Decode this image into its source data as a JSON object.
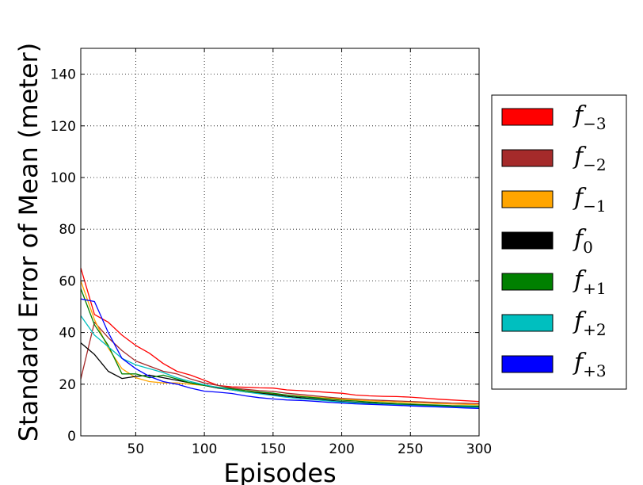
{
  "chart_data": {
    "type": "line",
    "xlabel": "Episodes",
    "ylabel": "Standard Error of Mean (meter)",
    "xlim": [
      10,
      300
    ],
    "ylim": [
      0,
      150
    ],
    "xticks": [
      50,
      100,
      150,
      200,
      250,
      300
    ],
    "yticks": [
      0,
      20,
      40,
      60,
      80,
      100,
      120,
      140
    ],
    "grid": true,
    "legend_position": "right-outside",
    "series": [
      {
        "name": "f_{-3}",
        "legend_base": "f",
        "legend_sub": "−3",
        "color": "#ff0000",
        "x": [
          10,
          20,
          30,
          40,
          50,
          60,
          70,
          80,
          90,
          100,
          110,
          120,
          130,
          140,
          150,
          160,
          170,
          180,
          190,
          200,
          210,
          220,
          230,
          240,
          250,
          260,
          270,
          280,
          290,
          300
        ],
        "y": [
          65,
          47,
          44,
          39,
          35,
          32,
          28,
          25,
          23.5,
          21.5,
          19.5,
          19,
          18.8,
          18.6,
          18.5,
          17.8,
          17.5,
          17.2,
          16.8,
          16.5,
          15.8,
          15.5,
          15.3,
          15.2,
          15,
          14.6,
          14.2,
          13.9,
          13.6,
          13.3
        ]
      },
      {
        "name": "f_{-2}",
        "legend_base": "f",
        "legend_sub": "−2",
        "color": "#a52a2a",
        "x": [
          10,
          20,
          30,
          40,
          50,
          60,
          70,
          80,
          90,
          100,
          110,
          120,
          130,
          140,
          150,
          160,
          170,
          180,
          190,
          200,
          210,
          220,
          230,
          240,
          250,
          260,
          270,
          280,
          290,
          300
        ],
        "y": [
          22,
          44,
          38,
          33,
          29,
          27,
          25,
          24,
          22,
          20.5,
          19.5,
          18.5,
          18,
          17.5,
          17.2,
          16.5,
          16,
          15.5,
          15,
          14.5,
          14.2,
          13.9,
          13.7,
          13.5,
          13.3,
          13.1,
          12.9,
          12.7,
          12.6,
          12.5
        ]
      },
      {
        "name": "f_{-1}",
        "legend_base": "f",
        "legend_sub": "−1",
        "color": "#ffa500",
        "x": [
          10,
          20,
          30,
          40,
          50,
          60,
          70,
          80,
          90,
          100,
          110,
          120,
          130,
          140,
          150,
          160,
          170,
          180,
          190,
          200,
          210,
          220,
          230,
          240,
          250,
          260,
          270,
          280,
          290,
          300
        ],
        "y": [
          60,
          45,
          34,
          26,
          22.5,
          21,
          20.5,
          20.5,
          20,
          19.5,
          18.5,
          17.8,
          17.2,
          16.8,
          16.3,
          15.8,
          15.4,
          15,
          14.6,
          14.2,
          13.9,
          13.6,
          13.3,
          13.1,
          12.9,
          12.7,
          12.5,
          12.3,
          12.2,
          12
        ]
      },
      {
        "name": "f_{0}",
        "legend_base": "f",
        "legend_sub": "0",
        "color": "#000000",
        "x": [
          10,
          20,
          30,
          40,
          50,
          60,
          70,
          80,
          90,
          100,
          110,
          120,
          130,
          140,
          150,
          160,
          170,
          180,
          190,
          200,
          210,
          220,
          230,
          240,
          250,
          260,
          270,
          280,
          290,
          300
        ],
        "y": [
          36,
          31.5,
          25,
          22.2,
          23,
          23.5,
          22.5,
          21.5,
          20.5,
          19.5,
          18.5,
          17.8,
          17,
          16.5,
          16,
          15.3,
          14.8,
          14.3,
          13.8,
          13.3,
          13,
          12.7,
          12.4,
          12.2,
          12,
          11.8,
          11.6,
          11.4,
          11.3,
          11.2
        ]
      },
      {
        "name": "f_{+1}",
        "legend_base": "f",
        "legend_sub": "+1",
        "color": "#008000",
        "x": [
          10,
          20,
          30,
          40,
          50,
          60,
          70,
          80,
          90,
          100,
          110,
          120,
          130,
          140,
          150,
          160,
          170,
          180,
          190,
          200,
          210,
          220,
          230,
          240,
          250,
          260,
          270,
          280,
          290,
          300
        ],
        "y": [
          57,
          43,
          35,
          24,
          24,
          22.5,
          23.5,
          22,
          20.5,
          19.5,
          18.8,
          18.2,
          17.5,
          17,
          16.5,
          15.8,
          15.2,
          14.8,
          14.3,
          13.8,
          13.5,
          13.1,
          12.8,
          12.5,
          12.3,
          12.1,
          11.9,
          11.7,
          11.6,
          11.5
        ]
      },
      {
        "name": "f_{+2}",
        "legend_base": "f",
        "legend_sub": "+2",
        "color": "#00bfbf",
        "x": [
          10,
          20,
          30,
          40,
          50,
          60,
          70,
          80,
          90,
          100,
          110,
          120,
          130,
          140,
          150,
          160,
          170,
          180,
          190,
          200,
          210,
          220,
          230,
          240,
          250,
          260,
          270,
          280,
          290,
          300
        ],
        "y": [
          46.5,
          39,
          34.5,
          30,
          27.5,
          26,
          24.5,
          22.5,
          21,
          19.8,
          18.7,
          17.8,
          17,
          16.3,
          15.6,
          14.9,
          14.4,
          14,
          13.5,
          13.1,
          12.8,
          12.5,
          12.2,
          12,
          11.8,
          11.6,
          11.4,
          11.2,
          11.1,
          11
        ]
      },
      {
        "name": "f_{+3}",
        "legend_base": "f",
        "legend_sub": "+3",
        "color": "#0000ff",
        "x": [
          10,
          20,
          30,
          40,
          50,
          60,
          70,
          80,
          90,
          100,
          110,
          120,
          130,
          140,
          150,
          160,
          170,
          180,
          190,
          200,
          210,
          220,
          230,
          240,
          250,
          260,
          270,
          280,
          290,
          300
        ],
        "y": [
          53,
          52,
          40,
          30,
          26,
          23,
          21,
          20,
          18.5,
          17.3,
          16.9,
          16.4,
          15.5,
          14.8,
          14.3,
          13.9,
          13.7,
          13.4,
          13,
          12.7,
          12.4,
          12.2,
          12,
          11.8,
          11.6,
          11.4,
          11.2,
          11,
          10.8,
          10.6
        ]
      }
    ]
  }
}
